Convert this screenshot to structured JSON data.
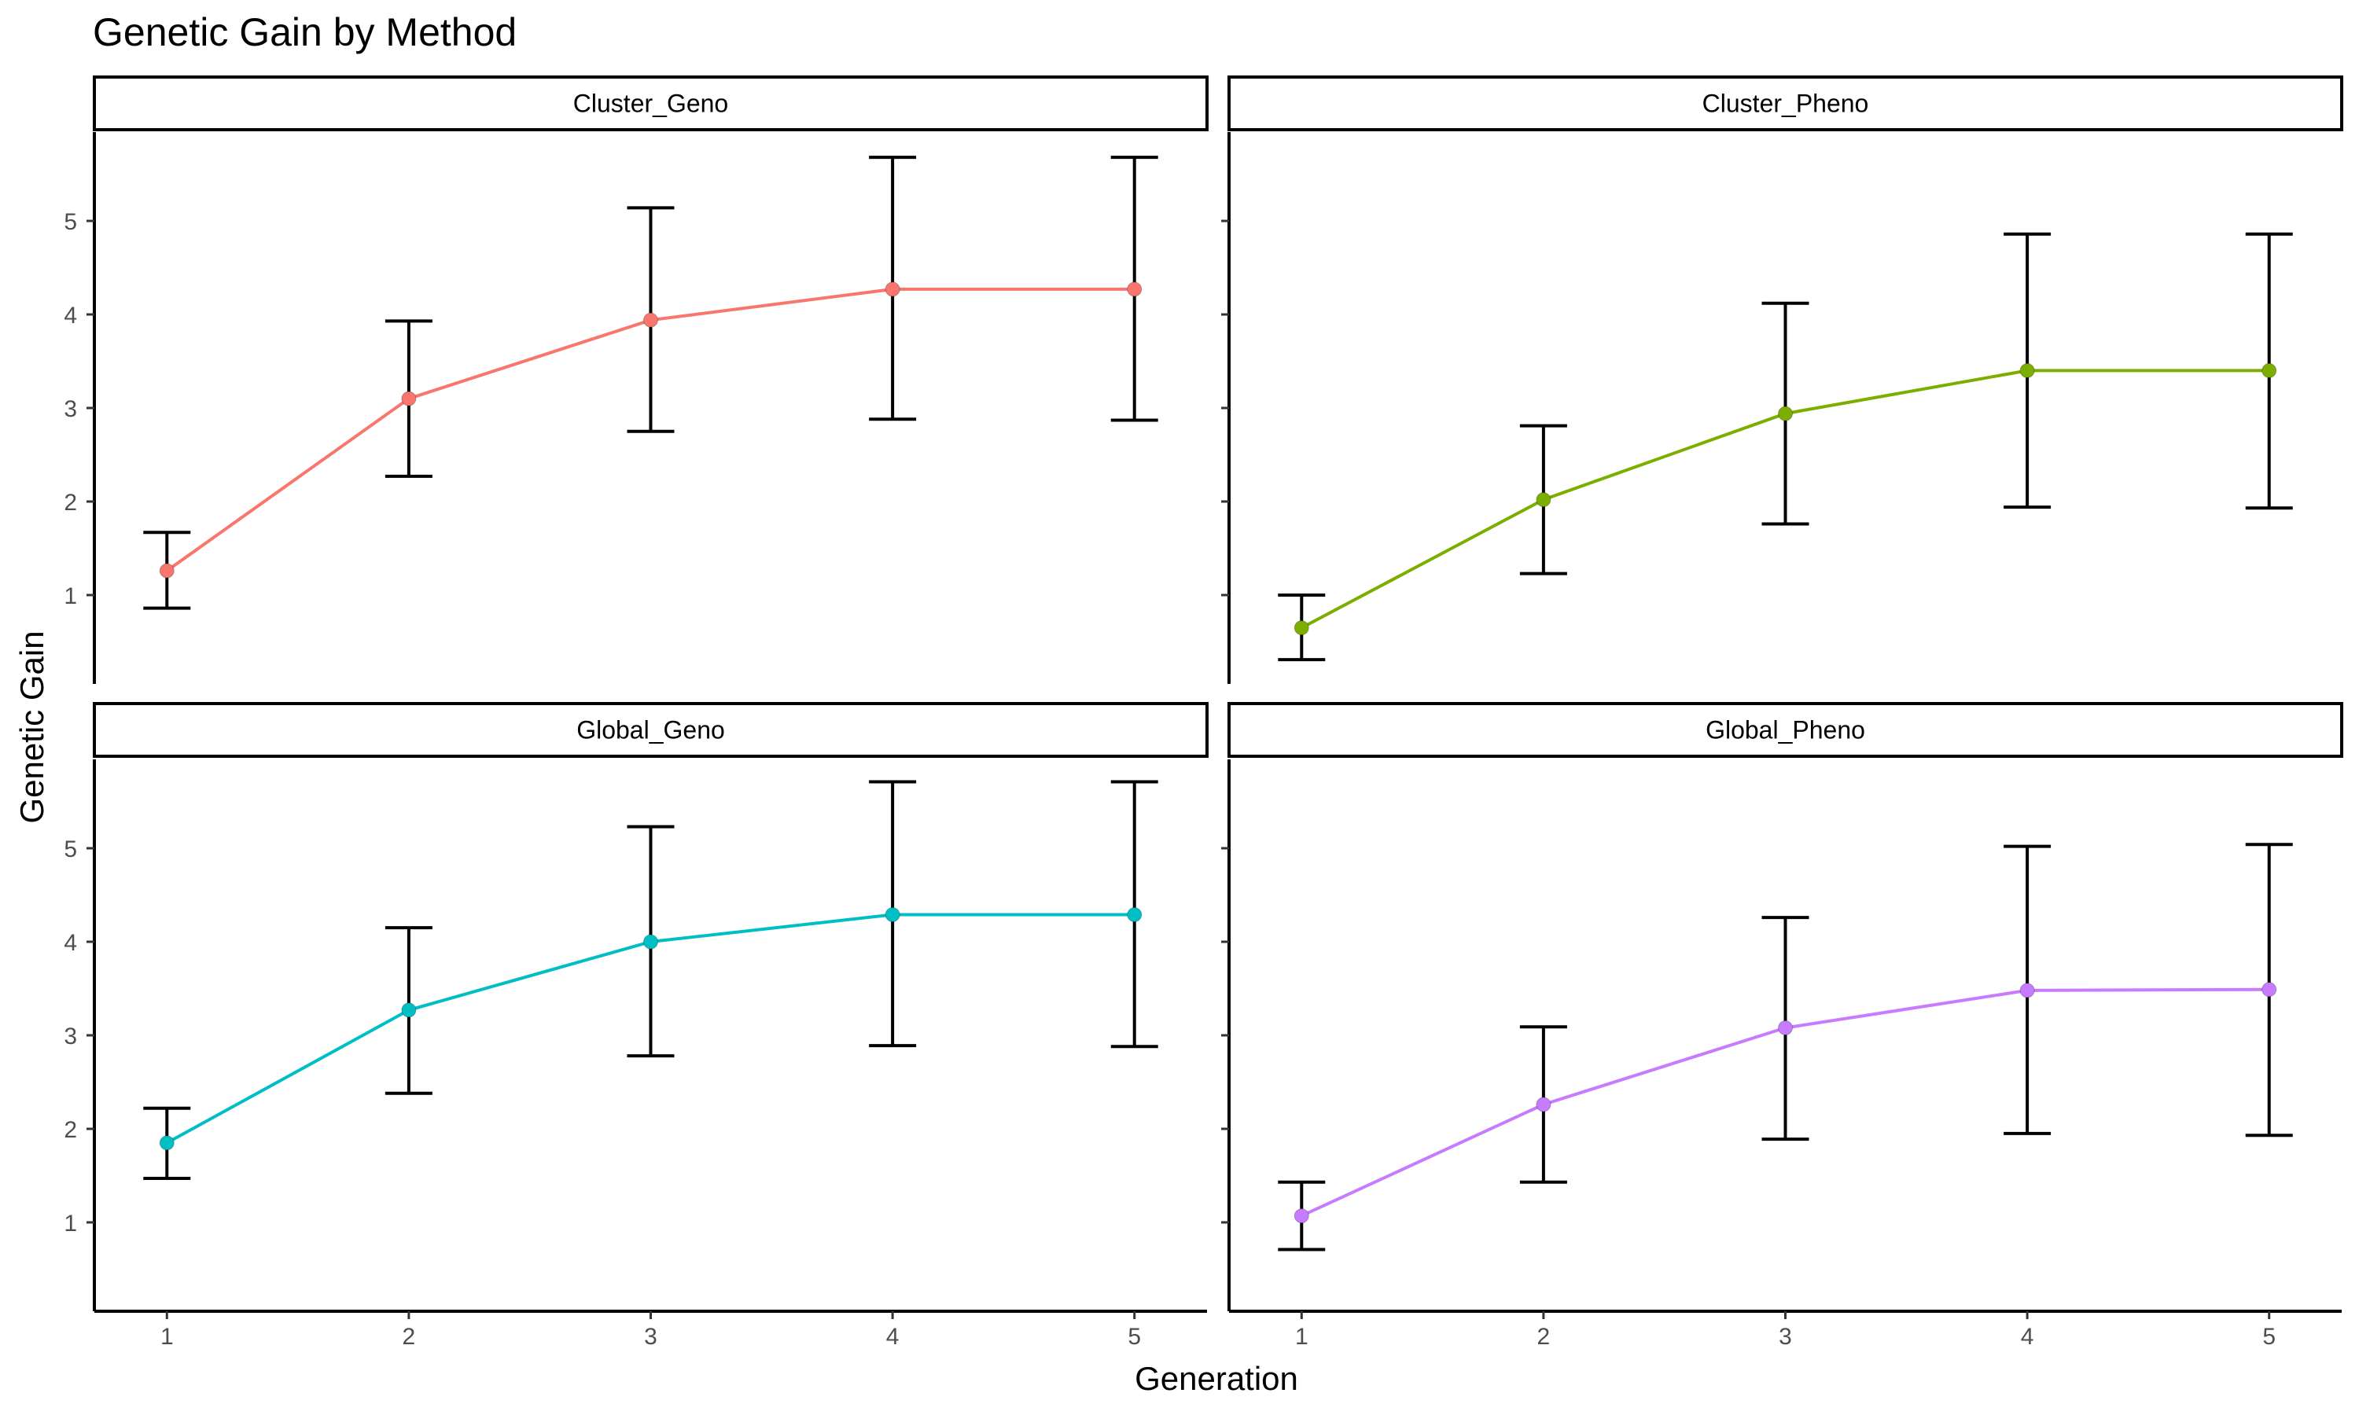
{
  "title": "Genetic Gain by Method",
  "xlabel": "Generation",
  "ylabel": "Genetic Gain",
  "chart_data": {
    "type": "line",
    "title": "Genetic Gain by Method",
    "xlabel": "Generation",
    "ylabel": "Genetic Gain",
    "x": [
      1,
      2,
      3,
      4,
      5
    ],
    "x_ticks": [
      "1",
      "2",
      "3",
      "4",
      "5"
    ],
    "y_ticks": [
      "1",
      "2",
      "3",
      "4",
      "5"
    ],
    "xlim": [
      0.7,
      5.3
    ],
    "ylim": [
      0.05,
      5.95
    ],
    "grid": false,
    "legend": "none",
    "facets": [
      {
        "name": "Cluster_Geno",
        "color": "#F8766D",
        "mean": [
          1.26,
          3.1,
          3.94,
          4.27,
          4.27
        ],
        "lower": [
          0.86,
          2.27,
          2.75,
          2.88,
          2.87
        ],
        "upper": [
          1.67,
          3.93,
          5.14,
          5.68,
          5.68
        ]
      },
      {
        "name": "Cluster_Pheno",
        "color": "#7CAE00",
        "mean": [
          0.65,
          2.02,
          2.94,
          3.4,
          3.4
        ],
        "lower": [
          0.31,
          1.23,
          1.76,
          1.94,
          1.93
        ],
        "upper": [
          1.0,
          2.81,
          4.12,
          4.86,
          4.86
        ]
      },
      {
        "name": "Global_Geno",
        "color": "#00BFC4",
        "mean": [
          1.85,
          3.27,
          4.0,
          4.29,
          4.29
        ],
        "lower": [
          1.47,
          2.38,
          2.78,
          2.89,
          2.88
        ],
        "upper": [
          2.22,
          4.15,
          5.23,
          5.71,
          5.71
        ]
      },
      {
        "name": "Global_Pheno",
        "color": "#C77CFF",
        "mean": [
          1.07,
          2.26,
          3.08,
          3.48,
          3.49
        ],
        "lower": [
          0.71,
          1.43,
          1.89,
          1.95,
          1.93
        ],
        "upper": [
          1.43,
          3.09,
          4.26,
          5.02,
          5.04
        ]
      }
    ]
  }
}
